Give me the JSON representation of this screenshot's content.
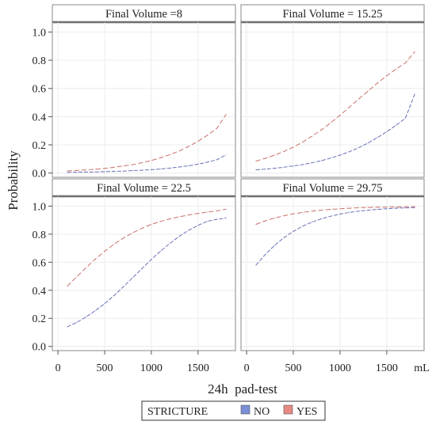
{
  "chart_data": {
    "type": "line",
    "layout": "2x2 panel grid",
    "ylabel": "Probability",
    "xlabel": "24h  pad-test",
    "x_unit": "mL",
    "xlim": [
      -60,
      1900
    ],
    "ylim": [
      -0.03,
      1.07
    ],
    "x_ticks": [
      0,
      500,
      1000,
      1500
    ],
    "y_ticks": [
      0.0,
      0.2,
      0.4,
      0.6,
      0.8,
      1.0
    ],
    "x_tick_labels": [
      "0",
      "500",
      "1000",
      "1500"
    ],
    "y_tick_labels": [
      "0.0",
      "0.2",
      "0.4",
      "0.6",
      "0.8",
      "1.0"
    ],
    "grid": true,
    "legend": {
      "title": "STRICTURE",
      "placement": "bottom",
      "entries": [
        {
          "label": "NO",
          "color": "#7b8fd8"
        },
        {
          "label": "YES",
          "color": "#e58a84"
        }
      ]
    },
    "x": [
      100,
      200,
      300,
      400,
      500,
      600,
      700,
      800,
      900,
      1000,
      1100,
      1200,
      1300,
      1400,
      1500,
      1600,
      1700,
      1800
    ],
    "panels": [
      {
        "title": "Final Volume =8",
        "series": [
          {
            "key": "no",
            "values": [
              0.005,
              0.006,
              0.007,
              0.008,
              0.01,
              0.012,
              0.014,
              0.017,
              0.02,
              0.024,
              0.029,
              0.035,
              0.043,
              0.052,
              0.063,
              0.077,
              0.094,
              0.128
            ]
          },
          {
            "key": "yes",
            "values": [
              0.015,
              0.018,
              0.022,
              0.027,
              0.033,
              0.041,
              0.05,
              0.06,
              0.073,
              0.089,
              0.108,
              0.131,
              0.157,
              0.189,
              0.226,
              0.268,
              0.316,
              0.415
            ]
          }
        ]
      },
      {
        "title": "Final Volume = 15.25",
        "series": [
          {
            "key": "no",
            "values": [
              0.023,
              0.028,
              0.034,
              0.041,
              0.05,
              0.06,
              0.073,
              0.088,
              0.106,
              0.127,
              0.151,
              0.18,
              0.213,
              0.251,
              0.293,
              0.339,
              0.389,
              0.56
            ]
          },
          {
            "key": "yes",
            "values": [
              0.085,
              0.104,
              0.127,
              0.153,
              0.184,
              0.22,
              0.261,
              0.306,
              0.356,
              0.41,
              0.467,
              0.525,
              0.582,
              0.638,
              0.69,
              0.738,
              0.781,
              0.86
            ]
          }
        ]
      },
      {
        "title": "Final Volume = 22.5",
        "series": [
          {
            "key": "no",
            "values": [
              0.14,
              0.17,
              0.21,
              0.255,
              0.305,
              0.362,
              0.425,
              0.49,
              0.555,
              0.62,
              0.68,
              0.735,
              0.785,
              0.828,
              0.863,
              0.892,
              0.906,
              0.915
            ]
          },
          {
            "key": "yes",
            "values": [
              0.43,
              0.495,
              0.56,
              0.622,
              0.678,
              0.728,
              0.772,
              0.81,
              0.842,
              0.869,
              0.891,
              0.909,
              0.924,
              0.937,
              0.948,
              0.957,
              0.966,
              0.978
            ]
          }
        ]
      },
      {
        "title": "Final Volume = 29.75",
        "series": [
          {
            "key": "no",
            "values": [
              0.58,
              0.655,
              0.72,
              0.775,
              0.82,
              0.857,
              0.886,
              0.909,
              0.928,
              0.943,
              0.955,
              0.964,
              0.971,
              0.977,
              0.981,
              0.985,
              0.987,
              0.99
            ]
          },
          {
            "key": "yes",
            "values": [
              0.87,
              0.895,
              0.915,
              0.931,
              0.944,
              0.955,
              0.964,
              0.971,
              0.977,
              0.981,
              0.985,
              0.988,
              0.99,
              0.992,
              0.993,
              0.994,
              0.995,
              0.996
            ]
          }
        ]
      }
    ]
  }
}
